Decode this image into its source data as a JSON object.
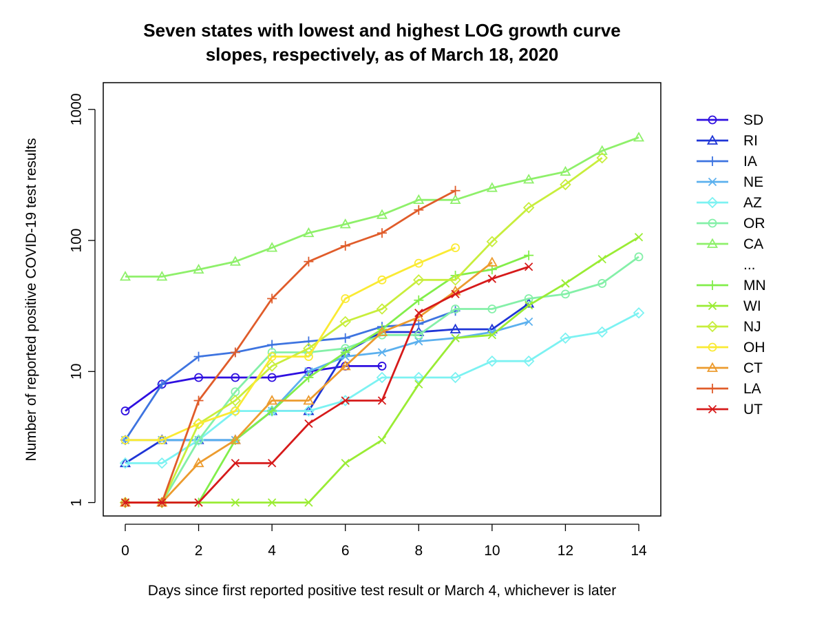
{
  "chart_data": {
    "type": "line",
    "title_lines": [
      "Seven states with lowest and highest LOG growth curve",
      "slopes, respectively, as of March 18, 2020"
    ],
    "xlabel": "Days since first reported positive test result or March 4, whichever is later",
    "ylabel": "Number of reported positive COVID-19 test results",
    "x_scale": "linear",
    "y_scale": "log",
    "xlim": [
      -0.6,
      14.6
    ],
    "ylim": [
      0.79,
      1600
    ],
    "x_ticks": [
      0,
      2,
      4,
      6,
      8,
      10,
      12,
      14
    ],
    "x_tick_labels": [
      "0",
      "2",
      "4",
      "6",
      "8",
      "10",
      "12",
      "14"
    ],
    "y_ticks": [
      1,
      10,
      100,
      1000
    ],
    "y_tick_labels": [
      "1",
      "10",
      "100",
      "1000"
    ],
    "grid": false,
    "legend_position": "right",
    "legend_ellipsis": "...",
    "series": [
      {
        "name": "SD",
        "color": "#2E0FE0",
        "marker": "circle",
        "x": [
          0,
          1,
          2,
          3,
          4,
          5,
          6,
          7
        ],
        "y": [
          5,
          8,
          9,
          9,
          9,
          10,
          11,
          11
        ]
      },
      {
        "name": "RI",
        "color": "#1F35D6",
        "marker": "triangle",
        "x": [
          0,
          1,
          2,
          3,
          4,
          5,
          6,
          7,
          8,
          9,
          10,
          11
        ],
        "y": [
          2,
          3,
          3,
          3,
          5,
          5,
          14,
          20,
          20,
          21,
          21,
          33
        ]
      },
      {
        "name": "IA",
        "color": "#3E74E0",
        "marker": "plus",
        "x": [
          0,
          1,
          2,
          3,
          4,
          5,
          6,
          7,
          8,
          9
        ],
        "y": [
          3,
          8,
          13,
          14,
          16,
          17,
          18,
          22,
          23,
          29
        ]
      },
      {
        "name": "NE",
        "color": "#5BB0EE",
        "marker": "cross",
        "x": [
          0,
          1,
          2,
          3,
          4,
          5,
          6,
          7,
          8,
          9,
          10,
          11
        ],
        "y": [
          3,
          3,
          3,
          3,
          5,
          10,
          13,
          14,
          17,
          18,
          20,
          24
        ]
      },
      {
        "name": "AZ",
        "color": "#7CF2F2",
        "marker": "diamond",
        "x": [
          0,
          1,
          2,
          3,
          4,
          5,
          6,
          7,
          8,
          9,
          10,
          11,
          12,
          13,
          14
        ],
        "y": [
          2,
          2,
          3,
          5,
          5,
          5,
          6,
          9,
          9,
          9,
          12,
          12,
          18,
          20,
          28
        ]
      },
      {
        "name": "OR",
        "color": "#84F0A8",
        "marker": "circle",
        "x": [
          0,
          1,
          2,
          3,
          4,
          5,
          6,
          7,
          8,
          9,
          10,
          11,
          12,
          13,
          14
        ],
        "y": [
          1,
          1,
          3,
          7,
          14,
          14,
          15,
          19,
          19,
          30,
          30,
          36,
          39,
          47,
          75
        ]
      },
      {
        "name": "CA",
        "color": "#8EF06A",
        "marker": "triangle",
        "x": [
          0,
          1,
          2,
          3,
          4,
          5,
          6,
          7,
          8,
          9,
          10,
          11,
          12,
          13,
          14
        ],
        "y": [
          53,
          53,
          60,
          69,
          88,
          114,
          133,
          157,
          204,
          204,
          252,
          292,
          335,
          483,
          611
        ]
      },
      {
        "name": "MN",
        "color": "#82EE4A",
        "marker": "plus",
        "x": [
          0,
          1,
          2,
          3,
          4,
          5,
          6,
          7,
          8,
          9,
          10,
          11
        ],
        "y": [
          1,
          1,
          1,
          3,
          5,
          9,
          14,
          21,
          35,
          54,
          60,
          77
        ]
      },
      {
        "name": "WI",
        "color": "#9AEC34",
        "marker": "cross",
        "x": [
          0,
          1,
          2,
          3,
          4,
          5,
          6,
          7,
          8,
          9,
          10,
          11,
          12,
          13,
          14
        ],
        "y": [
          1,
          1,
          1,
          1,
          1,
          1,
          2,
          3,
          8,
          18,
          19,
          32,
          47,
          72,
          106
        ]
      },
      {
        "name": "NJ",
        "color": "#C8EE3C",
        "marker": "diamond",
        "x": [
          0,
          1,
          2,
          3,
          4,
          5,
          6,
          7,
          8,
          9,
          10,
          11,
          12,
          13
        ],
        "y": [
          1,
          1,
          4,
          6,
          11,
          15,
          24,
          30,
          50,
          50,
          98,
          178,
          267,
          427
        ]
      },
      {
        "name": "OH",
        "color": "#FAEA33",
        "marker": "circle",
        "x": [
          0,
          1,
          2,
          3,
          4,
          5,
          6,
          7,
          8,
          9
        ],
        "y": [
          3,
          3,
          4,
          5,
          13,
          13,
          36,
          50,
          67,
          88
        ]
      },
      {
        "name": "CT",
        "color": "#EC9B2E",
        "marker": "triangle",
        "x": [
          0,
          1,
          2,
          3,
          4,
          5,
          6,
          7,
          8,
          9,
          10
        ],
        "y": [
          1,
          1,
          2,
          3,
          6,
          6,
          11,
          20,
          26,
          41,
          68
        ]
      },
      {
        "name": "LA",
        "color": "#E05C2A",
        "marker": "plus",
        "x": [
          0,
          1,
          2,
          3,
          4,
          5,
          6,
          7,
          8,
          9
        ],
        "y": [
          1,
          1,
          6,
          14,
          36,
          69,
          91,
          114,
          171,
          240
        ]
      },
      {
        "name": "UT",
        "color": "#D61A1A",
        "marker": "cross",
        "x": [
          0,
          1,
          2,
          3,
          4,
          5,
          6,
          7,
          8,
          9,
          10,
          11
        ],
        "y": [
          1,
          1,
          1,
          2,
          2,
          4,
          6,
          6,
          28,
          39,
          51,
          63
        ]
      }
    ],
    "legend_order": [
      "SD",
      "RI",
      "IA",
      "NE",
      "AZ",
      "OR",
      "CA",
      "...",
      "MN",
      "WI",
      "NJ",
      "OH",
      "CT",
      "LA",
      "UT"
    ]
  }
}
